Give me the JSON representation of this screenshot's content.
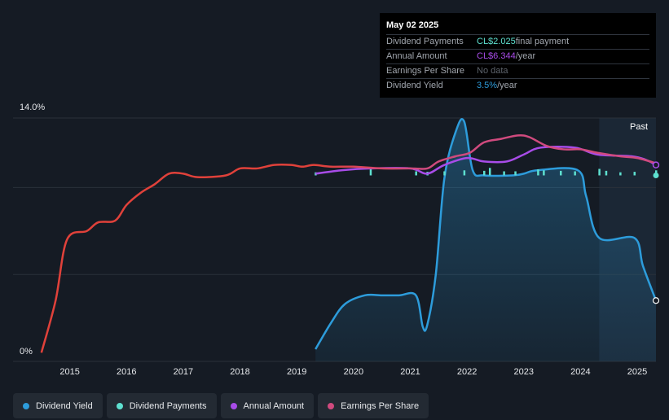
{
  "tooltip": {
    "date": "May 02 2025",
    "rows": [
      {
        "label": "Dividend Payments",
        "value": "CL$2.025",
        "suffix": " final payment",
        "color": "#5ee0d0"
      },
      {
        "label": "Annual Amount",
        "value": "CL$6.344",
        "suffix": "/year",
        "color": "#a84ce8"
      },
      {
        "label": "Earnings Per Share",
        "value": "No data",
        "suffix": "",
        "color": "#5d636c"
      },
      {
        "label": "Dividend Yield",
        "value": "3.5%",
        "suffix": "/year",
        "color": "#2d9cdb"
      }
    ]
  },
  "past_label": "Past",
  "legend": [
    {
      "label": "Dividend Yield",
      "color": "#2d9cdb"
    },
    {
      "label": "Dividend Payments",
      "color": "#5ee0d0"
    },
    {
      "label": "Annual Amount",
      "color": "#a84ce8"
    },
    {
      "label": "Earnings Per Share",
      "color": "#d04a7e"
    }
  ],
  "chart_data": {
    "type": "line",
    "x_range": [
      2014.0,
      2025.33
    ],
    "y_range": [
      0,
      14.0
    ],
    "y_tick_labels": [
      "14.0%",
      "0%"
    ],
    "x_tick_labels": [
      "2015",
      "2016",
      "2017",
      "2018",
      "2019",
      "2020",
      "2021",
      "2022",
      "2023",
      "2024",
      "2025"
    ],
    "forecast_start": 2024.33,
    "colors": {
      "yield": "#2d9cdb",
      "payments": "#5ee0d0",
      "annual": "#a84ce8",
      "eps": "#d04a7e",
      "eps_early": "#e0413a"
    },
    "series": [
      {
        "name": "Dividend Yield",
        "key": "yield",
        "unit": "%",
        "points": [
          [
            2019.33,
            0.7
          ],
          [
            2019.6,
            2.2
          ],
          [
            2019.85,
            3.3
          ],
          [
            2020.2,
            3.8
          ],
          [
            2020.5,
            3.8
          ],
          [
            2020.8,
            3.8
          ],
          [
            2021.1,
            3.8
          ],
          [
            2021.22,
            2.0
          ],
          [
            2021.3,
            2.1
          ],
          [
            2021.45,
            5.0
          ],
          [
            2021.6,
            10.5
          ],
          [
            2021.8,
            13.2
          ],
          [
            2021.95,
            13.8
          ],
          [
            2022.1,
            11.0
          ],
          [
            2022.3,
            10.7
          ],
          [
            2022.8,
            10.7
          ],
          [
            2023.0,
            10.8
          ],
          [
            2023.25,
            11.0
          ],
          [
            2023.95,
            11.0
          ],
          [
            2024.1,
            9.5
          ],
          [
            2024.33,
            7.1
          ],
          [
            2024.95,
            7.1
          ],
          [
            2025.1,
            5.5
          ],
          [
            2025.33,
            3.5
          ]
        ]
      },
      {
        "name": "Annual Amount",
        "key": "annual",
        "unit": "index",
        "points": [
          [
            2019.33,
            10.8
          ],
          [
            2019.8,
            11.0
          ],
          [
            2020.3,
            11.1
          ],
          [
            2021.0,
            11.1
          ],
          [
            2021.3,
            10.8
          ],
          [
            2021.6,
            11.3
          ],
          [
            2022.0,
            11.7
          ],
          [
            2022.3,
            11.5
          ],
          [
            2022.7,
            11.5
          ],
          [
            2023.0,
            11.9
          ],
          [
            2023.3,
            12.3
          ],
          [
            2023.9,
            12.3
          ],
          [
            2024.3,
            11.9
          ],
          [
            2024.9,
            11.8
          ],
          [
            2025.15,
            11.6
          ],
          [
            2025.33,
            11.3
          ]
        ]
      },
      {
        "name": "Earnings Per Share",
        "key": "eps",
        "unit": "index",
        "points": [
          [
            2014.5,
            0.5
          ],
          [
            2014.75,
            3.5
          ],
          [
            2014.95,
            7.0
          ],
          [
            2015.3,
            7.5
          ],
          [
            2015.5,
            8.0
          ],
          [
            2015.8,
            8.1
          ],
          [
            2016.0,
            9.0
          ],
          [
            2016.25,
            9.7
          ],
          [
            2016.5,
            10.2
          ],
          [
            2016.75,
            10.8
          ],
          [
            2017.0,
            10.8
          ],
          [
            2017.25,
            10.6
          ],
          [
            2017.75,
            10.7
          ],
          [
            2018.0,
            11.1
          ],
          [
            2018.3,
            11.1
          ],
          [
            2018.6,
            11.3
          ],
          [
            2018.9,
            11.3
          ],
          [
            2019.1,
            11.2
          ],
          [
            2019.3,
            11.3
          ],
          [
            2019.6,
            11.2
          ],
          [
            2020.0,
            11.2
          ],
          [
            2020.5,
            11.1
          ],
          [
            2021.0,
            11.1
          ],
          [
            2021.3,
            11.1
          ],
          [
            2021.5,
            11.5
          ],
          [
            2021.8,
            11.8
          ],
          [
            2022.05,
            12.0
          ],
          [
            2022.3,
            12.6
          ],
          [
            2022.6,
            12.8
          ],
          [
            2022.9,
            13.0
          ],
          [
            2023.1,
            12.9
          ],
          [
            2023.4,
            12.4
          ],
          [
            2023.7,
            12.2
          ],
          [
            2024.0,
            12.2
          ],
          [
            2024.3,
            12.0
          ],
          [
            2024.7,
            11.8
          ],
          [
            2025.0,
            11.7
          ],
          [
            2025.33,
            11.4
          ]
        ]
      },
      {
        "name": "Dividend Payments",
        "key": "payments",
        "unit": "relative",
        "bars": [
          [
            2019.33,
            0.15
          ],
          [
            2020.3,
            0.5
          ],
          [
            2021.1,
            0.25
          ],
          [
            2021.3,
            0.2
          ],
          [
            2021.6,
            0.25
          ],
          [
            2021.95,
            0.35
          ],
          [
            2022.3,
            0.3
          ],
          [
            2022.4,
            0.6
          ],
          [
            2022.65,
            0.25
          ],
          [
            2022.85,
            0.25
          ],
          [
            2023.25,
            0.45
          ],
          [
            2023.35,
            0.35
          ],
          [
            2023.65,
            0.3
          ],
          [
            2023.9,
            0.25
          ],
          [
            2024.33,
            0.5
          ],
          [
            2024.45,
            0.3
          ],
          [
            2024.7,
            0.15
          ],
          [
            2024.95,
            0.2
          ],
          [
            2025.33,
            0.35
          ]
        ]
      }
    ]
  }
}
